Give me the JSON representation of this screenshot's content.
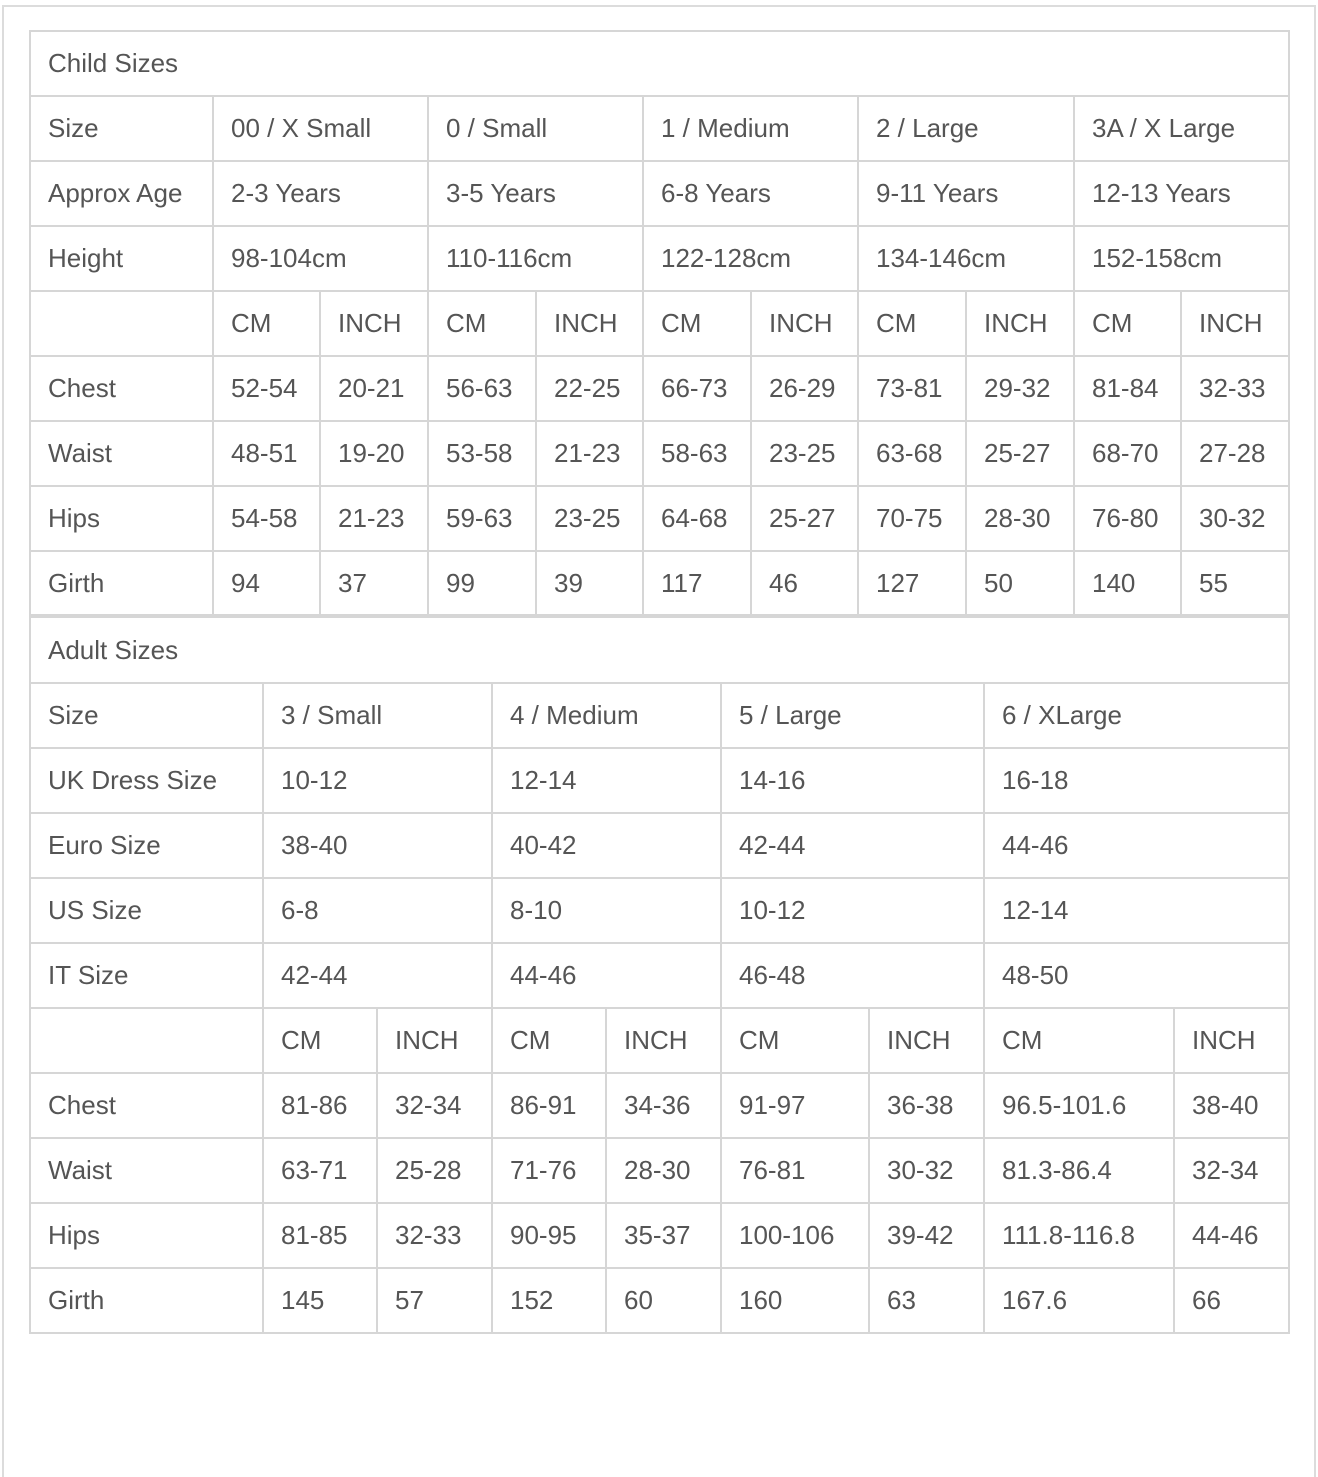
{
  "child": {
    "title": "Child Sizes",
    "size_label": "Size",
    "sizes": [
      "00 / X Small",
      "0 / Small",
      "1 / Medium",
      "2 / Large",
      "3A / X Large"
    ],
    "age_label": "Approx Age",
    "ages": [
      "2-3 Years",
      "3-5 Years",
      "6-8 Years",
      "9-11 Years",
      "12-13 Years"
    ],
    "height_label": "Height",
    "heights": [
      "98-104cm",
      "110-116cm",
      "122-128cm",
      "134-146cm",
      "152-158cm"
    ],
    "unit_cm": "CM",
    "unit_inch": "INCH",
    "measurements": [
      {
        "label": "Chest",
        "values": [
          "52-54",
          "20-21",
          "56-63",
          "22-25",
          "66-73",
          "26-29",
          "73-81",
          "29-32",
          "81-84",
          "32-33"
        ]
      },
      {
        "label": "Waist",
        "values": [
          "48-51",
          "19-20",
          "53-58",
          "21-23",
          "58-63",
          "23-25",
          "63-68",
          "25-27",
          "68-70",
          "27-28"
        ]
      },
      {
        "label": "Hips",
        "values": [
          "54-58",
          "21-23",
          "59-63",
          "23-25",
          "64-68",
          "25-27",
          "70-75",
          "28-30",
          "76-80",
          "30-32"
        ]
      },
      {
        "label": "Girth",
        "values": [
          "94",
          "37",
          "99",
          "39",
          "117",
          "46",
          "127",
          "50",
          "140",
          "55"
        ]
      }
    ]
  },
  "adult": {
    "title": "Adult Sizes",
    "rows": [
      {
        "label": "Size",
        "values": [
          "3 / Small",
          "4 / Medium",
          "5 / Large",
          "6 / XLarge"
        ]
      },
      {
        "label": "UK Dress Size",
        "values": [
          "10-12",
          "12-14",
          "14-16",
          "16-18"
        ]
      },
      {
        "label": "Euro Size",
        "values": [
          "38-40",
          "40-42",
          "42-44",
          "44-46"
        ]
      },
      {
        "label": "US Size",
        "values": [
          "6-8",
          "8-10",
          "10-12",
          "12-14"
        ]
      },
      {
        "label": "IT Size",
        "values": [
          "42-44",
          "44-46",
          "46-48",
          "48-50"
        ]
      }
    ],
    "unit_cm": "CM",
    "unit_inch": "INCH",
    "measurements": [
      {
        "label": "Chest",
        "values": [
          "81-86",
          "32-34",
          "86-91",
          "34-36",
          "91-97",
          "36-38",
          "96.5-101.6",
          "38-40"
        ]
      },
      {
        "label": "Waist",
        "values": [
          "63-71",
          "25-28",
          "71-76",
          "28-30",
          "76-81",
          "30-32",
          "81.3-86.4",
          "32-34"
        ]
      },
      {
        "label": "Hips",
        "values": [
          "81-85",
          "32-33",
          "90-95",
          "35-37",
          "100-106",
          "39-42",
          "111.8-116.8",
          "44-46"
        ]
      },
      {
        "label": "Girth",
        "values": [
          "145",
          "57",
          "152",
          "60",
          "160",
          "63",
          "167.6",
          "66"
        ]
      }
    ]
  }
}
